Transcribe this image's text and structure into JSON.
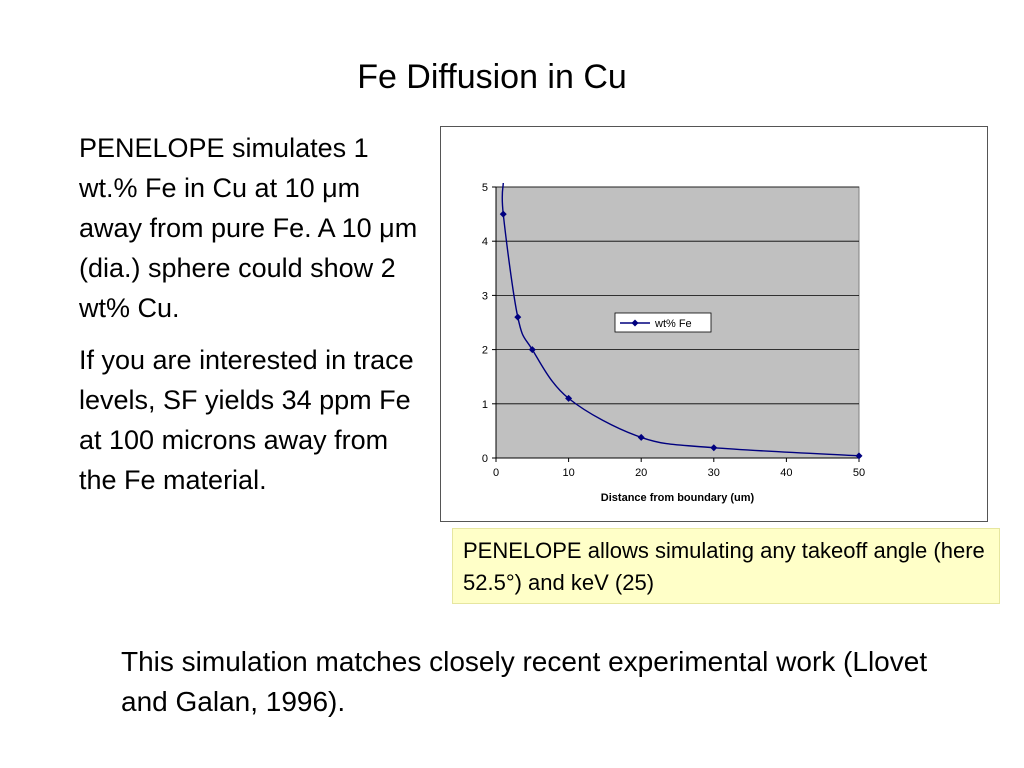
{
  "slide": {
    "title": "Fe Diffusion in Cu",
    "paragraph1": "PENELOPE simulates 1 wt.% Fe in Cu at 10 μm away from pure Fe. A 10 μm (dia.) sphere could show   2 wt% Cu.",
    "paragraph2": "If you are interested in trace levels, SF yields 34 ppm Fe at 100 microns away from the Fe material.",
    "note": "PENELOPE allows simulating any takeoff angle (here 52.5°) and keV (25)",
    "bottom": "This simulation matches closely recent experimental work (Llovet and Galan, 1996)."
  },
  "chart_data": {
    "type": "line",
    "title": "",
    "xlabel": "Distance from boundary (um)",
    "ylabel": "",
    "xlim": [
      0,
      50
    ],
    "ylim": [
      0,
      5
    ],
    "xticks": [
      0,
      10,
      20,
      30,
      40,
      50
    ],
    "yticks": [
      0,
      1,
      2,
      3,
      4,
      5
    ],
    "grid": true,
    "legend_position": "center-right",
    "series": [
      {
        "name": "wt% Fe",
        "color": "#00007f",
        "x": [
          1,
          3,
          5,
          10,
          20,
          30,
          50
        ],
        "y": [
          4.5,
          2.6,
          2.0,
          1.1,
          0.38,
          0.19,
          0.04
        ]
      }
    ],
    "plot_background": "#c0c0c0"
  }
}
